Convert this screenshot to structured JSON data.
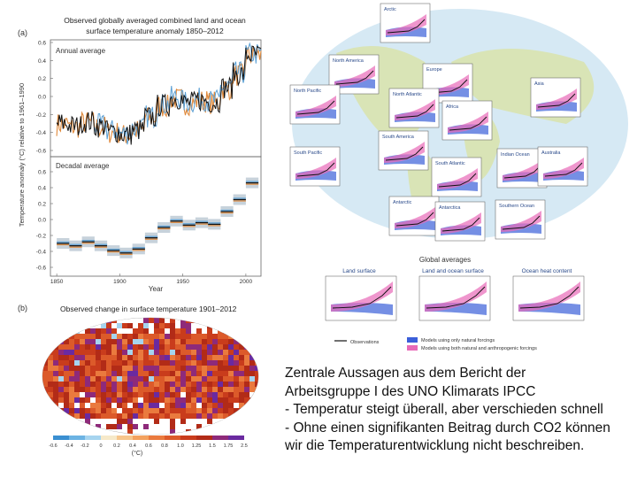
{
  "panel_a": {
    "label": "(a)",
    "title_line1": "Observed globally averaged combined land and ocean",
    "title_line2": "surface temperature anomaly 1850–2012",
    "ylabel": "Temperature anomaly (°C) relative to 1961–1990",
    "xlabel": "Year",
    "annual_label": "Annual average",
    "decadal_label": "Decadal average",
    "x_ticks": [
      "1850",
      "1900",
      "1950",
      "2000"
    ],
    "y_ticks_top": [
      "0.6",
      "0.4",
      "0.2",
      "0.0",
      "-0.2",
      "-0.4",
      "-0.6"
    ],
    "y_ticks_bottom": [
      "0.6",
      "0.4",
      "0.2",
      "0.0",
      "-0.2",
      "-0.4",
      "-0.6"
    ]
  },
  "chart_data": [
    {
      "type": "bar",
      "title": "Decadal average",
      "categories": [
        "1850",
        "1860",
        "1870",
        "1880",
        "1890",
        "1900",
        "1910",
        "1920",
        "1930",
        "1940",
        "1950",
        "1960",
        "1970",
        "1980",
        "1990",
        "2000"
      ],
      "values": [
        -0.3,
        -0.33,
        -0.28,
        -0.33,
        -0.39,
        -0.42,
        -0.37,
        -0.23,
        -0.1,
        -0.02,
        -0.07,
        -0.04,
        -0.06,
        0.1,
        0.25,
        0.46
      ],
      "xlabel": "Year",
      "ylabel": "Temperature anomaly (°C) relative to 1961–1990",
      "ylim": [
        -0.6,
        0.6
      ]
    }
  ],
  "panel_b": {
    "label": "(b)",
    "title": "Observed change in surface temperature 1901–2012",
    "colorbar_ticks": [
      "-0.6",
      "-0.4",
      "-0.2",
      "0",
      "0.2",
      "0.4",
      "0.6",
      "0.8",
      "1.0",
      "1.25",
      "1.5",
      "1.75",
      "2.5"
    ],
    "colorbar_unit": "(°C)",
    "colors": [
      "#3a8fd1",
      "#6cb3e3",
      "#a6d4ef",
      "#f6e9c9",
      "#f7c68c",
      "#f3a25f",
      "#ea7a3e",
      "#dc5a2a",
      "#c93c1c",
      "#b22b17",
      "#8e2a7a",
      "#6a2aa0",
      "#4b1d8c"
    ]
  },
  "map_right": {
    "regions": [
      {
        "name": "Arctic"
      },
      {
        "name": "North America"
      },
      {
        "name": "Europe"
      },
      {
        "name": "Asia"
      },
      {
        "name": "North Pacific"
      },
      {
        "name": "North Atlantic"
      },
      {
        "name": "Africa"
      },
      {
        "name": "South America"
      },
      {
        "name": "South Pacific"
      },
      {
        "name": "South Atlantic"
      },
      {
        "name": "Indian Ocean"
      },
      {
        "name": "Australia"
      },
      {
        "name": "Antarctic"
      },
      {
        "name": "Antarctica"
      },
      {
        "name": "Southern Ocean"
      }
    ],
    "global_title": "Global averages",
    "global_panels": [
      "Land surface",
      "Land and ocean surface",
      "Ocean heat content"
    ],
    "legend": {
      "observations": "Observations",
      "natural": "Models using only natural forcings",
      "both": "Models using both natural and anthropogenic forcings"
    },
    "colors": {
      "natural": "#3b5fd9",
      "both": "#e86ab8",
      "ocean": "#9ec9ea",
      "land": "#c7dca8"
    }
  },
  "caption": {
    "line1": "Zentrale Aussagen aus dem Bericht der",
    "line2": "Arbeitsgruppe I des UNO Klimarats IPCC",
    "line3": "- Temperatur steigt überall, aber verschieden schnell",
    "line4": "- Ohne einen signifikanten Beitrag durch CO2 können",
    "line5": "wir die Temperaturentwicklung nicht beschreiben."
  }
}
